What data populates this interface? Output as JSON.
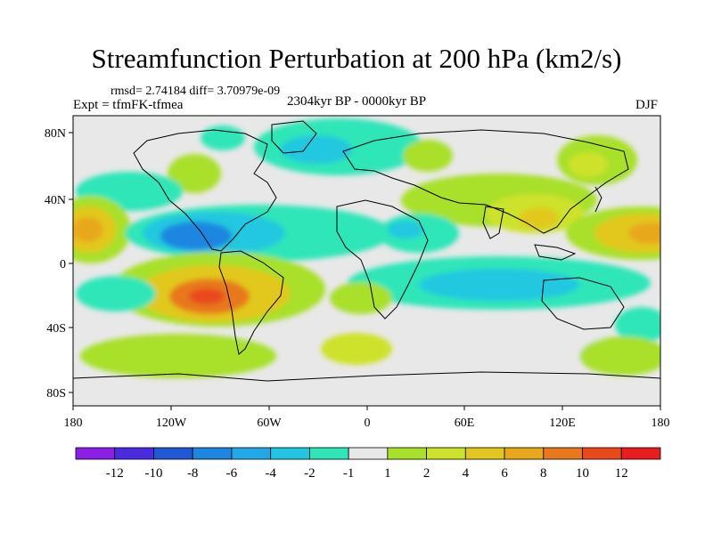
{
  "title": "Streamfunction Perturbation at 200 hPa (km2/s)",
  "stats": "rmsd= 2.74184 diff= 3.70979e-09",
  "experiment": "Expt = tfmFK-tfmea",
  "period": "2304kyr BP - 0000kyr BP",
  "season": "DJF",
  "axes": {
    "y_ticks": [
      "80N",
      "40N",
      "0",
      "40S",
      "80S"
    ],
    "x_ticks": [
      "180",
      "120W",
      "60W",
      "0",
      "60E",
      "120E",
      "180"
    ]
  },
  "colorbar": {
    "labels": [
      "-12",
      "-10",
      "-8",
      "-6",
      "-4",
      "-2",
      "-1",
      "1",
      "2",
      "4",
      "6",
      "8",
      "10",
      "12"
    ],
    "colors": [
      "#8a1fe6",
      "#4a2be0",
      "#2258d6",
      "#1c86e0",
      "#20a8e8",
      "#21c7e0",
      "#2ee6b8",
      "#e8e8e8",
      "#a8e02a",
      "#cde22a",
      "#e2c81c",
      "#e8a81a",
      "#e8781a",
      "#e8481a",
      "#e81e1e"
    ]
  },
  "colors": {
    "land_outline": "#000000",
    "neutral": "#e8e8e8"
  }
}
